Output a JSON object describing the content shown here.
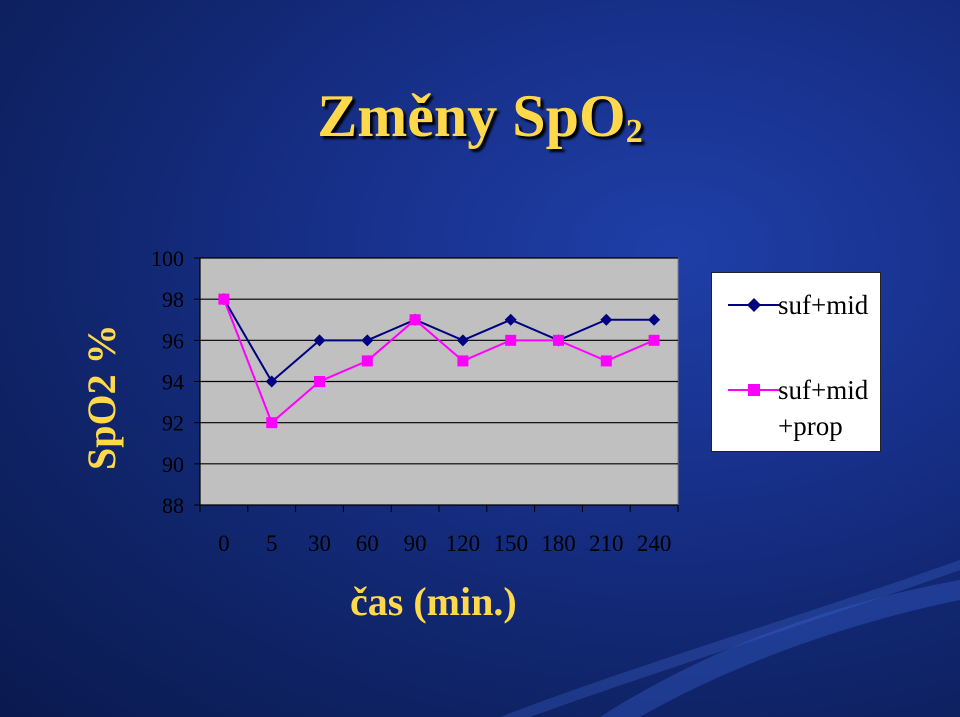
{
  "title": {
    "main": "Změny SpO",
    "sub": "2"
  },
  "chart_data": {
    "type": "line",
    "title": "Změny SpO2",
    "ylabel": "SpO2 %",
    "xlabel": "čas (min.)",
    "categories": [
      "0",
      "5",
      "30",
      "60",
      "90",
      "120",
      "150",
      "180",
      "210",
      "240"
    ],
    "ylim": [
      88,
      100
    ],
    "yticks": [
      88,
      90,
      92,
      94,
      96,
      98,
      100
    ],
    "grid": true,
    "legend_position": "right",
    "series": [
      {
        "name": "suf+mid",
        "values": [
          98,
          94,
          96,
          96,
          97,
          96,
          97,
          96,
          97,
          97
        ],
        "color": "#000080",
        "marker": "diamond"
      },
      {
        "name": "suf+mid +prop",
        "values": [
          98,
          92,
          94,
          95,
          97,
          95,
          96,
          96,
          95,
          96
        ],
        "color": "#ff00ff",
        "marker": "square"
      }
    ]
  },
  "legend": {
    "item1": "suf+mid",
    "item2_line1": "suf+mid",
    "item2_line2": "+prop"
  },
  "colors": {
    "title_color": "#ffd94a",
    "plot_background": "#c0c0c0",
    "axis_text": "#000000"
  }
}
